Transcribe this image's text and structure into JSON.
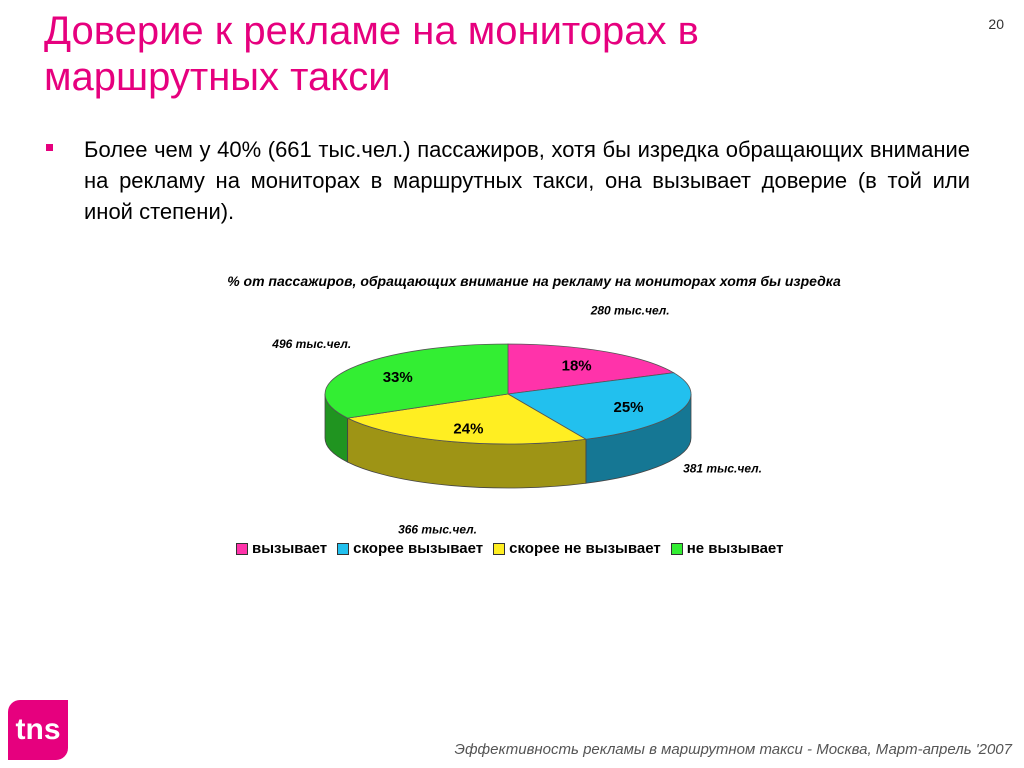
{
  "slide": {
    "title": "Доверие к рекламе на мониторах в маршрутных такси",
    "page_number": "20",
    "bullet": "Более чем у 40% (661 тыс.чел.) пассажиров, хотя бы изредка обращающих внимание на рекламу на мониторах в маршрутных такси, она вызывает доверие (в той или иной степени).",
    "footer": "Эффективность рекламы в маршрутном такси - Москва, Март-апрель '2007",
    "logo": "tns"
  },
  "chart_data": {
    "type": "pie",
    "title": "% от пассажиров, обращающих внимание на  рекламу на мониторах  хотя бы изредка",
    "legend_position": "bottom",
    "slices": [
      {
        "name": "вызывает",
        "value": 18,
        "label": "18%",
        "count_label": "280 тыс.чел.",
        "color": "#ff33aa"
      },
      {
        "name": "скорее вызывает",
        "value": 25,
        "label": "25%",
        "count_label": "381 тыс.чел.",
        "color": "#22c0ee"
      },
      {
        "name": "скорее не вызывает",
        "value": 24,
        "label": "24%",
        "count_label": "366 тыс.чел.",
        "color": "#ffee22"
      },
      {
        "name": "не вызывает",
        "value": 33,
        "label": "33%",
        "count_label": "496 тыс.чел.",
        "color": "#33ee33"
      }
    ]
  }
}
